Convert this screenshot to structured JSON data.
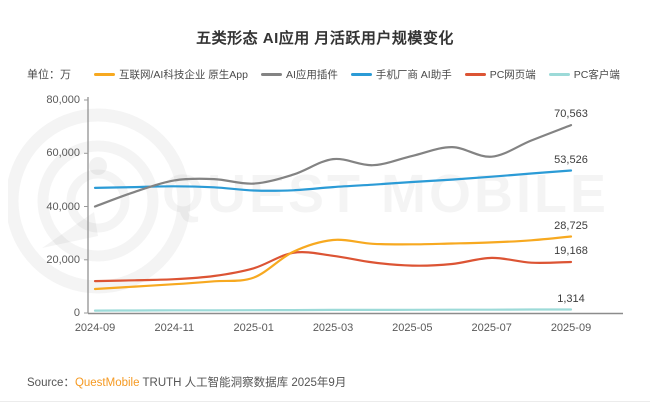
{
  "title": "五类形态 AI应用 月活跃用户规模变化",
  "unit_label": "单位：万",
  "watermark": {
    "text": "QUEST MOBILE"
  },
  "source": {
    "prefix": "Source：",
    "brand": "QuestMobile",
    "suffix": " TRUTH 人工智能洞察数据库 2025年9月"
  },
  "colors": {
    "brand_orange": "#F59A23",
    "axis": "#9a9a9a",
    "tick_text": "#595959",
    "title_text": "#333333"
  },
  "chart_data": {
    "type": "line",
    "title": "五类形态 AI应用 月活跃用户规模变化",
    "unit": "万",
    "grid": false,
    "legend_position": "top",
    "ylim": [
      0,
      80000
    ],
    "y_ticks": [
      {
        "v": 0,
        "label": "0"
      },
      {
        "v": 20000,
        "label": "20,000"
      },
      {
        "v": 40000,
        "label": "40,000"
      },
      {
        "v": 60000,
        "label": "60,000"
      },
      {
        "v": 80000,
        "label": "80,000"
      }
    ],
    "x": [
      "2024-09",
      "2024-10",
      "2024-11",
      "2024-12",
      "2025-01",
      "2025-02",
      "2025-03",
      "2025-04",
      "2025-05",
      "2025-06",
      "2025-07",
      "2025-08",
      "2025-09"
    ],
    "x_tick_labels": [
      "2024-09",
      "2024-11",
      "2025-01",
      "2025-03",
      "2025-05",
      "2025-07",
      "2025-09"
    ],
    "series": [
      {
        "name": "互联网/AI科技企业 原生App",
        "color": "#F7A920",
        "end_label": "28,725",
        "values": [
          9000,
          9900,
          10800,
          11900,
          13300,
          23000,
          27400,
          26000,
          25800,
          26100,
          26500,
          27300,
          28725
        ]
      },
      {
        "name": "AI应用插件",
        "color": "#838383",
        "end_label": "70,563",
        "values": [
          40000,
          45500,
          49800,
          50300,
          48600,
          52000,
          57800,
          55500,
          59000,
          62300,
          58700,
          64800,
          70563
        ]
      },
      {
        "name": "手机厂商 AI助手",
        "color": "#2B9BD6",
        "end_label": "53,526",
        "values": [
          47000,
          47300,
          47600,
          47200,
          46000,
          46100,
          47300,
          48200,
          49200,
          50100,
          51200,
          52400,
          53526
        ]
      },
      {
        "name": "PC网页端",
        "color": "#DC5434",
        "end_label": "19,168",
        "values": [
          12000,
          12300,
          12700,
          13900,
          16800,
          22600,
          21500,
          19000,
          17800,
          18400,
          20700,
          18900,
          19168
        ]
      },
      {
        "name": "PC客户端",
        "color": "#9CDAD8",
        "end_label": "1,314",
        "values": [
          900,
          950,
          1000,
          1000,
          1050,
          1100,
          1150,
          1150,
          1200,
          1250,
          1250,
          1300,
          1314
        ]
      }
    ]
  }
}
